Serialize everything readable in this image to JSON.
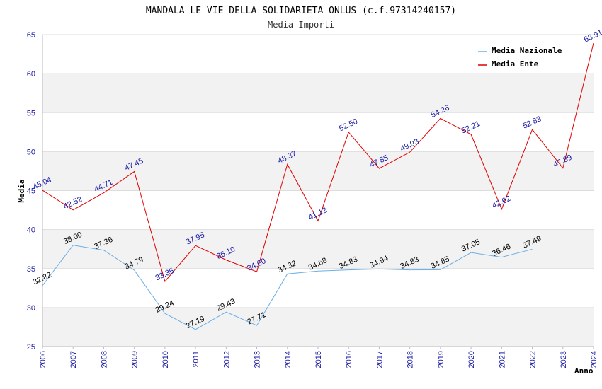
{
  "chart_data": {
    "type": "line",
    "title": "MANDALA LE VIE DELLA SOLIDARIETA ONLUS (c.f.97314240157)",
    "subtitle": "Media Importi",
    "xlabel": "Anno",
    "ylabel": "Media",
    "ylim": [
      25,
      65
    ],
    "yticks": [
      "25",
      "30",
      "35",
      "40",
      "45",
      "50",
      "55",
      "60",
      "65"
    ],
    "categories": [
      "2006",
      "2007",
      "2008",
      "2009",
      "2010",
      "2011",
      "2012",
      "2013",
      "2014",
      "2015",
      "2016",
      "2017",
      "2018",
      "2019",
      "2020",
      "2021",
      "2022",
      "2023",
      "2024"
    ],
    "grid": true,
    "legend_position": "top-right",
    "series": [
      {
        "name": "Media Nazionale",
        "color": "#6aaee6",
        "values": [
          32.82,
          38.0,
          37.36,
          34.79,
          29.24,
          27.19,
          29.43,
          27.71,
          34.32,
          34.68,
          34.83,
          34.94,
          34.83,
          34.85,
          37.05,
          36.46,
          37.49,
          null,
          null
        ],
        "labels": [
          "32.82",
          "38.00",
          "37.36",
          "34.79",
          "29.24",
          "27.19",
          "29.43",
          "27.71",
          "34.32",
          "34.68",
          "34.83",
          "34.94",
          "34.83",
          "34.85",
          "37.05",
          "36.46",
          "37.49",
          "",
          ""
        ]
      },
      {
        "name": "Media Ente",
        "color": "#e00000",
        "values": [
          45.04,
          42.52,
          44.71,
          47.45,
          33.35,
          37.95,
          36.1,
          34.6,
          48.37,
          41.12,
          52.5,
          47.85,
          49.93,
          54.26,
          52.21,
          42.62,
          52.83,
          47.89,
          63.91
        ],
        "labels": [
          "45.04",
          "42.52",
          "44.71",
          "47.45",
          "33.35",
          "37.95",
          "36.10",
          "34.60",
          "48.37",
          "41.12",
          "52.50",
          "47.85",
          "49.93",
          "54.26",
          "52.21",
          "42.62",
          "52.83",
          "47.89",
          "63.91"
        ]
      }
    ]
  }
}
